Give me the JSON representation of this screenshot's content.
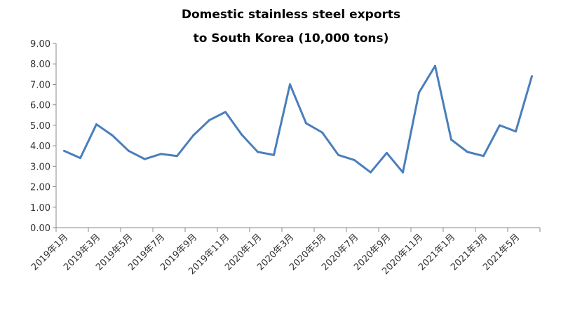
{
  "chart_data": {
    "type": "line",
    "title": [
      "Domestic stainless steel exports",
      "to South Korea (10,000 tons)"
    ],
    "xlabel": "",
    "ylabel": "",
    "ylim": [
      0,
      9
    ],
    "yticks": [
      "0.00",
      "1.00",
      "2.00",
      "3.00",
      "4.00",
      "5.00",
      "6.00",
      "7.00",
      "8.00",
      "9.00"
    ],
    "xtick_labels": [
      "2019年1月",
      "2019年3月",
      "2019年5月",
      "2019年7月",
      "2019年9月",
      "2019年11月",
      "2020年1月",
      "2020年3月",
      "2020年5月",
      "2020年7月",
      "2020年9月",
      "2020年11月",
      "2021年1月",
      "2021年3月",
      "2021年5月"
    ],
    "grid": false,
    "legend": "none",
    "color": "#4a7ebb",
    "series": [
      {
        "name": "Exports to South Korea",
        "values": [
          3.75,
          3.4,
          5.05,
          4.5,
          3.75,
          3.35,
          3.6,
          3.5,
          4.5,
          5.25,
          5.65,
          4.55,
          3.7,
          3.55,
          7.0,
          5.1,
          4.65,
          3.55,
          3.3,
          2.7,
          3.65,
          2.7,
          6.6,
          7.9,
          4.3,
          3.7,
          3.5,
          5.0,
          4.7,
          7.4
        ]
      }
    ]
  }
}
